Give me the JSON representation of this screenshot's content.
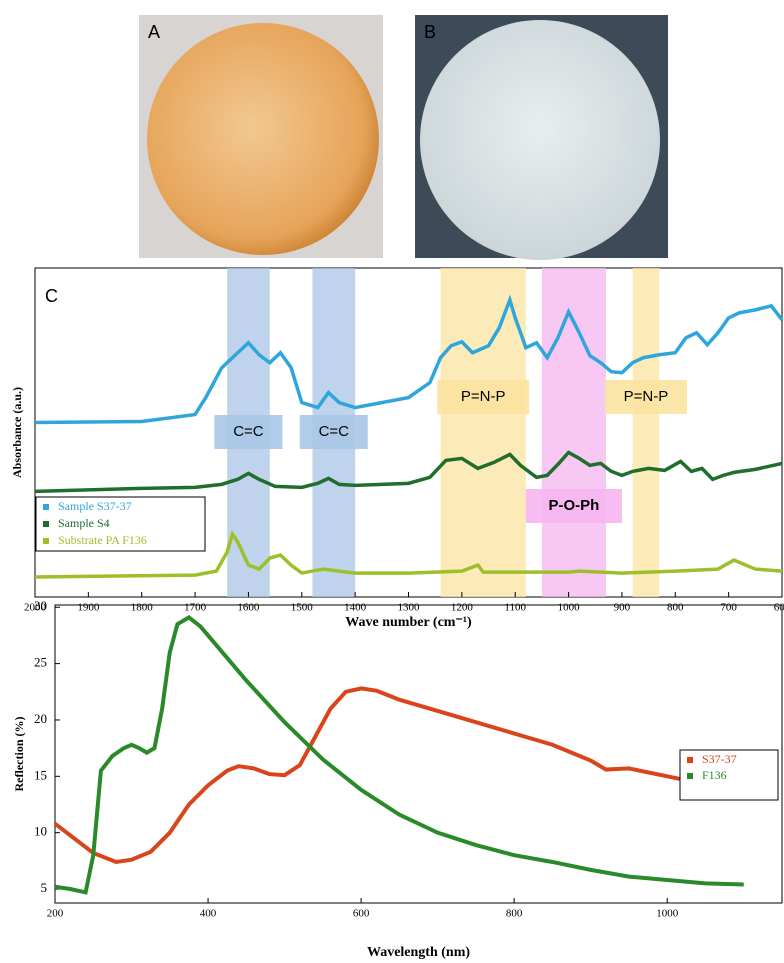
{
  "panels": {
    "a": {
      "label": "A"
    },
    "b": {
      "label": "B"
    }
  },
  "chart_data": [
    {
      "type": "line",
      "panel_label": "C",
      "xlabel": "Wave number (cm⁻¹)",
      "ylabel": "Absorbance (a.u.)",
      "xlim": [
        2000,
        600
      ],
      "ylim": [
        0,
        33
      ],
      "xticks": [
        2000,
        1900,
        1800,
        1700,
        1600,
        1500,
        1400,
        1300,
        1200,
        1100,
        1000,
        900,
        800,
        700,
        600
      ],
      "bands": [
        {
          "label": "C=C",
          "from": 1640,
          "to": 1560,
          "color": "#a9c6e6"
        },
        {
          "label": "C=C",
          "from": 1480,
          "to": 1400,
          "color": "#a9c6e6"
        },
        {
          "label": "P=N-P",
          "from": 1240,
          "to": 1080,
          "color": "#fbe3a0"
        },
        {
          "label": "P-O-Ph",
          "from": 1050,
          "to": 930,
          "color": "#f6b6f2"
        },
        {
          "label": "P=N-P",
          "from": 880,
          "to": 830,
          "color": "#fbe3a0"
        }
      ],
      "series": [
        {
          "name": "Sample S37-37",
          "color": "#2ea6dc",
          "x": [
            2000,
            1800,
            1700,
            1680,
            1650,
            1620,
            1600,
            1580,
            1560,
            1540,
            1520,
            1500,
            1470,
            1450,
            1430,
            1400,
            1300,
            1260,
            1240,
            1220,
            1200,
            1180,
            1150,
            1130,
            1110,
            1100,
            1080,
            1060,
            1040,
            1020,
            1000,
            980,
            960,
            940,
            920,
            900,
            880,
            860,
            830,
            800,
            780,
            760,
            740,
            720,
            700,
            680,
            650,
            620,
            600
          ],
          "values": [
            17.5,
            17.6,
            18.3,
            20,
            23,
            24.5,
            25.5,
            24.3,
            23.5,
            24.5,
            23,
            19.5,
            19,
            20.5,
            19.5,
            19,
            20,
            21.5,
            24,
            25.2,
            25.6,
            24.5,
            25.2,
            27,
            29.8,
            28,
            25,
            25.5,
            24,
            26,
            28.6,
            26.5,
            24.2,
            23.5,
            22.6,
            22.5,
            23.5,
            24,
            24.3,
            24.5,
            26,
            26.5,
            25.3,
            26.5,
            28,
            28.5,
            28.8,
            29.2,
            27.8
          ]
        },
        {
          "name": "Sample S4",
          "color": "#1f6e2e",
          "x": [
            2000,
            1800,
            1700,
            1650,
            1620,
            1600,
            1580,
            1550,
            1500,
            1470,
            1450,
            1430,
            1400,
            1300,
            1260,
            1230,
            1200,
            1170,
            1140,
            1110,
            1090,
            1060,
            1040,
            1020,
            1000,
            980,
            960,
            940,
            920,
            900,
            880,
            850,
            820,
            790,
            770,
            750,
            730,
            710,
            690,
            650,
            600
          ],
          "values": [
            10.6,
            10.9,
            11,
            11.3,
            11.8,
            12.4,
            11.8,
            11.1,
            11,
            11.4,
            11.9,
            11.3,
            11.2,
            11.4,
            12,
            13.7,
            13.9,
            12.9,
            13.5,
            14.3,
            13.2,
            12,
            12.2,
            13.3,
            14.5,
            13.9,
            13.2,
            13.4,
            12.6,
            12.2,
            12.6,
            12.9,
            12.7,
            13.6,
            12.6,
            12.9,
            11.8,
            12.2,
            12.5,
            12.8,
            13.4
          ]
        },
        {
          "name": "Substrate PA F136",
          "color": "#9dbf2a",
          "x": [
            2000,
            1700,
            1660,
            1640,
            1630,
            1620,
            1600,
            1580,
            1560,
            1540,
            1520,
            1500,
            1460,
            1400,
            1300,
            1200,
            1170,
            1160,
            1000,
            980,
            900,
            800,
            720,
            690,
            650,
            600
          ],
          "values": [
            2,
            2.2,
            2.6,
            4.5,
            6.3,
            5.5,
            3.2,
            2.8,
            3.9,
            4.2,
            3.2,
            2.4,
            2.8,
            2.4,
            2.4,
            2.6,
            3.2,
            2.5,
            2.5,
            2.6,
            2.4,
            2.6,
            2.8,
            3.7,
            2.8,
            2.6
          ]
        }
      ]
    },
    {
      "type": "line",
      "xlabel": "Wavelength (nm)",
      "ylabel": "Reflection (%)",
      "xlim": [
        200,
        1150
      ],
      "ylim": [
        3.76,
        30.2
      ],
      "xticks": [
        200,
        400,
        600,
        800,
        1000
      ],
      "yticks": [
        5,
        10,
        15,
        20,
        25,
        30
      ],
      "series": [
        {
          "name": "S37-37",
          "color": "#d9441a",
          "x": [
            200,
            225,
            250,
            280,
            300,
            325,
            350,
            375,
            400,
            425,
            440,
            460,
            480,
            500,
            520,
            540,
            560,
            580,
            600,
            620,
            650,
            700,
            750,
            800,
            850,
            900,
            920,
            950,
            1000,
            1050,
            1100
          ],
          "values": [
            10.8,
            9.5,
            8.2,
            7.4,
            7.6,
            8.3,
            10,
            12.5,
            14.2,
            15.5,
            15.9,
            15.7,
            15.2,
            15.1,
            16,
            18.5,
            21,
            22.5,
            22.8,
            22.6,
            21.8,
            20.8,
            19.8,
            18.8,
            17.8,
            16.4,
            15.6,
            15.7,
            15,
            14.3,
            14
          ]
        },
        {
          "name": "F136",
          "color": "#2a8a2a",
          "x": [
            200,
            220,
            240,
            250,
            260,
            275,
            290,
            300,
            310,
            320,
            330,
            340,
            350,
            360,
            375,
            390,
            400,
            450,
            500,
            550,
            600,
            650,
            700,
            750,
            800,
            850,
            900,
            950,
            1000,
            1050,
            1100
          ],
          "values": [
            5.2,
            5,
            4.7,
            8,
            15.5,
            16.8,
            17.5,
            17.8,
            17.5,
            17.1,
            17.5,
            21,
            26,
            28.5,
            29.1,
            28.3,
            27.5,
            23.5,
            19.8,
            16.5,
            13.8,
            11.6,
            10,
            8.9,
            8,
            7.4,
            6.7,
            6.1,
            5.8,
            5.5,
            5.4
          ]
        }
      ]
    }
  ]
}
